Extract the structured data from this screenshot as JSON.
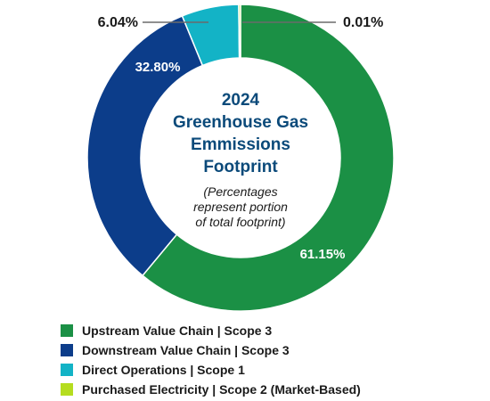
{
  "chart_data": {
    "type": "pie",
    "style": "donut",
    "title_lines": [
      "2024",
      "Greenhouse Gas",
      "Emmissions",
      "Footprint"
    ],
    "subtitle_lines": [
      "(Percentages",
      "represent portion",
      "of total footprint)"
    ],
    "legend_placement": "bottom",
    "slices": [
      {
        "label": "Upstream Value Chain  |  Scope 3",
        "value": 61.15,
        "value_label": "61.15%",
        "color": "#1b9045"
      },
      {
        "label": "Downstream Value Chain  |  Scope 3",
        "value": 32.8,
        "value_label": "32.80%",
        "color": "#0c3d8a"
      },
      {
        "label": "Direct Operations  |  Scope 1",
        "value": 6.04,
        "value_label": "6.04%",
        "color": "#13b3c6"
      },
      {
        "label": "Purchased Electricity  |  Scope 2 (Market-Based)",
        "value": 0.01,
        "value_label": "0.01%",
        "color": "#b5dd1f"
      }
    ]
  }
}
